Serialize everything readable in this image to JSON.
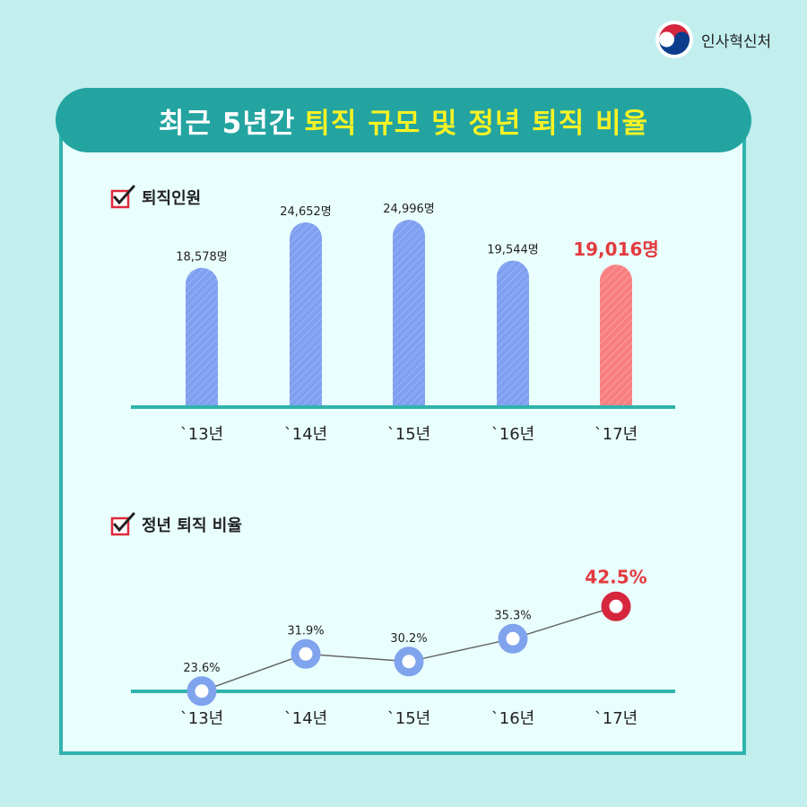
{
  "brand": {
    "name": "인사혁신처"
  },
  "title": {
    "part1": "최근 5년간",
    "part2": "퇴직 규모 및 정년 퇴직 비율"
  },
  "colors": {
    "bar": "#7f9ff0",
    "highlight_bar": "#f77f80",
    "line_point": "#7fa3ec",
    "highlight_point": "#d5263d",
    "axis": "#30b3ad",
    "highlight_text": "#e23b3f"
  },
  "chart_data": [
    {
      "type": "bar",
      "title": "퇴직인원",
      "categories": [
        "`13년",
        "`14년",
        "`15년",
        "`16년",
        "`17년"
      ],
      "values": [
        18578,
        24652,
        24996,
        19544,
        19016
      ],
      "labels": [
        "18,578명",
        "24,652명",
        "24,996명",
        "19,544명",
        "19,016명"
      ],
      "highlight_index": 4,
      "ylim": [
        0,
        28000
      ],
      "grid": false
    },
    {
      "type": "line",
      "title": "정년 퇴직 비율",
      "categories": [
        "`13년",
        "`14년",
        "`15년",
        "`16년",
        "`17년"
      ],
      "values": [
        23.6,
        31.9,
        30.2,
        35.3,
        42.5
      ],
      "labels": [
        "23.6%",
        "31.9%",
        "30.2%",
        "35.3%",
        "42.5%"
      ],
      "highlight_index": 4,
      "ylim": [
        12,
        48
      ],
      "grid": false
    }
  ]
}
